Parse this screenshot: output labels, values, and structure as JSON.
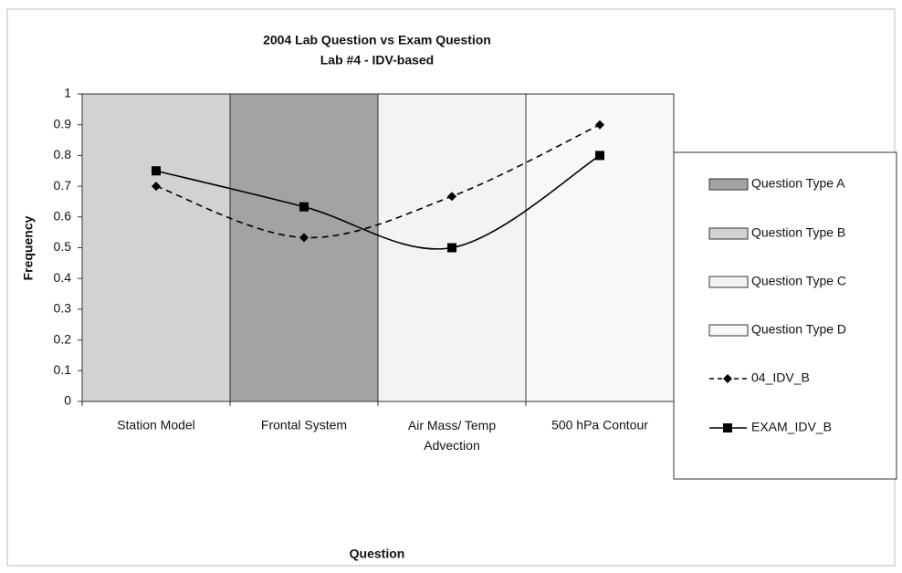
{
  "chart_data": {
    "type": "line",
    "title": "2004 Lab Question vs Exam Question",
    "subtitle": "Lab #4 - IDV-based",
    "x_label": "Question",
    "y_label": "Frequency",
    "categories": [
      "Station Model",
      "Frontal System",
      "Air Mass/ Temp Advection",
      "500 hPa Contour"
    ],
    "bands": [
      {
        "name": "Question Type A",
        "color": "#a3a3a3",
        "values": [
          null,
          1,
          null,
          null
        ]
      },
      {
        "name": "Question Type B",
        "color": "#d2d2d2",
        "values": [
          1,
          null,
          null,
          null
        ]
      },
      {
        "name": "Question Type C",
        "color": "#f3f3f3",
        "values": [
          null,
          null,
          1,
          null
        ]
      },
      {
        "name": "Question Type D",
        "color": "#f8f8f8",
        "values": [
          null,
          null,
          null,
          1
        ]
      }
    ],
    "series": [
      {
        "name": "04_IDV_B",
        "color": "#000000",
        "dashed": true,
        "marker": "diamond",
        "values": [
          0.7,
          0.533,
          0.667,
          0.9
        ]
      },
      {
        "name": "EXAM_IDV_B",
        "color": "#000000",
        "dashed": false,
        "marker": "square",
        "values": [
          0.75,
          0.633,
          0.5,
          0.8
        ]
      }
    ],
    "ylim": [
      0,
      1
    ],
    "yticks": [
      0,
      0.1,
      0.2,
      0.3,
      0.4,
      0.5,
      0.6,
      0.7,
      0.8,
      0.9,
      1
    ],
    "smooth": true,
    "legend": "right"
  }
}
